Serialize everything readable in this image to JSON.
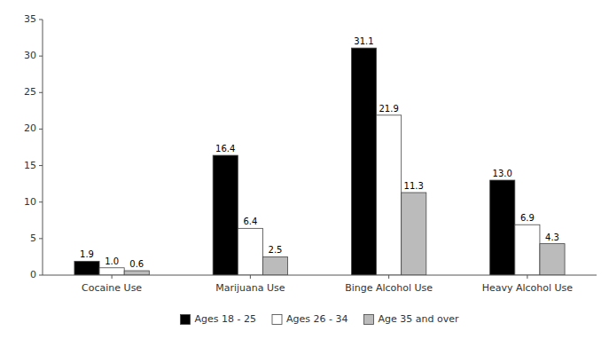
{
  "chart_data": {
    "type": "bar",
    "categories": [
      "Cocaine Use",
      "Marijuana Use",
      "Binge Alcohol Use",
      "Heavy Alcohol Use"
    ],
    "series": [
      {
        "name": "Ages 18 - 25",
        "color": "#000000",
        "values": [
          1.9,
          16.4,
          31.1,
          13.0
        ],
        "value_labels": [
          "1.9",
          "16.4",
          "31.1",
          "13.0"
        ]
      },
      {
        "name": "Ages 26 - 34",
        "color": "#ffffff",
        "values": [
          1.0,
          6.4,
          21.9,
          6.9
        ],
        "value_labels": [
          "1.0",
          "6.4",
          "21.9",
          "6.9"
        ]
      },
      {
        "name": "Age 35 and over",
        "color": "#bbbbbb",
        "values": [
          0.6,
          2.5,
          11.3,
          4.3
        ],
        "value_labels": [
          "0.6",
          "2.5",
          "11.3",
          "4.3"
        ]
      }
    ],
    "ylim": [
      0,
      35
    ],
    "yticks": [
      0,
      5,
      10,
      15,
      20,
      25,
      30,
      35
    ],
    "grid": false,
    "legend": "bottom",
    "data_labels": true
  }
}
